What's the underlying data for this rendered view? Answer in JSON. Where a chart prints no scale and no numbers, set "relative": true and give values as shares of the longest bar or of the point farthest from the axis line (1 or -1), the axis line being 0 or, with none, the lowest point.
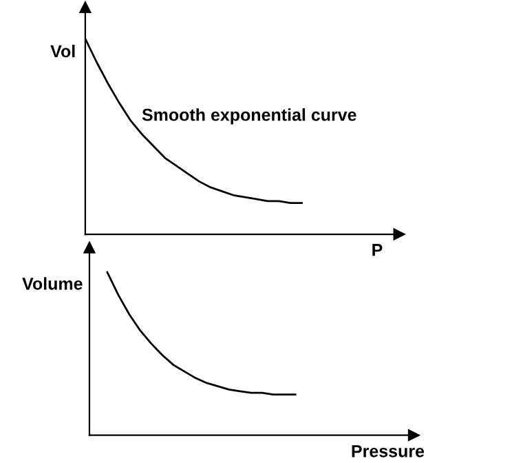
{
  "chart_data": [
    {
      "type": "line",
      "relative": true,
      "ylabel": "Vol",
      "xlabel": "P",
      "annotations": [
        "Smooth exponential curve"
      ],
      "legend": false,
      "tick_labels": false,
      "categories": [
        null,
        null,
        null,
        null,
        null,
        null,
        null,
        null,
        null,
        null,
        null,
        null,
        null,
        null,
        null,
        null,
        null,
        null,
        null,
        null
      ],
      "series": [
        {
          "color": "#000000",
          "values": [
            1.0,
            0.88,
            0.77,
            0.67,
            0.58,
            0.51,
            0.45,
            0.39,
            0.35,
            0.31,
            0.27,
            0.24,
            0.22,
            0.2,
            0.19,
            0.18,
            0.17,
            0.17,
            0.16,
            0.16
          ]
        }
      ]
    },
    {
      "type": "line",
      "relative": true,
      "ylabel": "Volume",
      "xlabel": "Pressure",
      "legend": false,
      "tick_labels": false,
      "categories": [
        null,
        null,
        null,
        null,
        null,
        null,
        null,
        null,
        null,
        null,
        null,
        null,
        null,
        null,
        null,
        null,
        null,
        null
      ],
      "series": [
        {
          "color": "#000000",
          "values": [
            1.0,
            0.86,
            0.74,
            0.64,
            0.56,
            0.49,
            0.43,
            0.39,
            0.35,
            0.32,
            0.3,
            0.28,
            0.27,
            0.26,
            0.26,
            0.25,
            0.25,
            0.25
          ]
        }
      ]
    }
  ]
}
